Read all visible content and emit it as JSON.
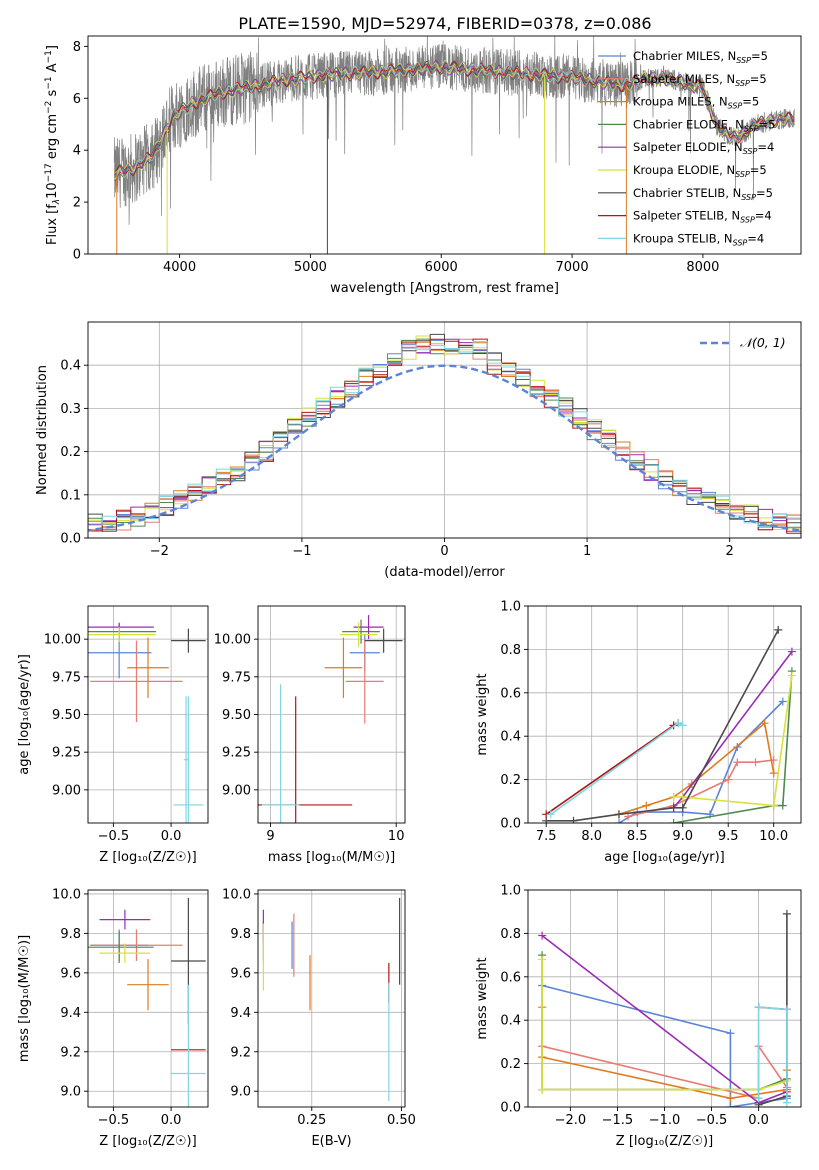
{
  "title": "PLATE=1590, MJD=52974, FIBERID=0378, z=0.086",
  "colors": {
    "chabrier_miles": "#5b84d6",
    "salpeter_miles": "#e97b73",
    "kroupa_miles": "#e07a1f",
    "chabrier_elodie": "#4f8a4f",
    "salpeter_elodie": "#9a2bb5",
    "kroupa_elodie": "#d7e23a",
    "chabrier_stelib": "#4a4a4a",
    "salpeter_stelib": "#b21414",
    "kroupa_stelib": "#7fd6e2",
    "data_gray": "#808080",
    "normal_dashed": "#5b84d6"
  },
  "chart_data": [
    {
      "id": "spectrum",
      "type": "line",
      "title": "PLATE=1590, MJD=52974, FIBERID=0378, z=0.086",
      "xlabel": "wavelength [Angstrom, rest frame]",
      "ylabel_parts": [
        "Flux [f",
        "λ",
        "10",
        "−17",
        " erg cm",
        "−2",
        " s",
        "−1",
        " A",
        "−1",
        "]"
      ],
      "xlim": [
        3300,
        8750
      ],
      "ylim": [
        0,
        8.4
      ],
      "xticks": [
        4000,
        5000,
        6000,
        7000,
        8000
      ],
      "yticks": [
        0,
        2,
        4,
        6,
        8
      ],
      "continuum": {
        "x": [
          3500,
          3650,
          3800,
          3950,
          4100,
          4300,
          4500,
          4800,
          5100,
          5500,
          6000,
          6500,
          7000,
          7400,
          7600,
          7800,
          8000,
          8100,
          8200,
          8300,
          8400,
          8600,
          8700
        ],
        "y": [
          3.1,
          3.3,
          3.8,
          5.3,
          5.8,
          6.2,
          6.4,
          6.7,
          6.9,
          7.0,
          7.2,
          7.0,
          6.8,
          6.5,
          6.8,
          6.7,
          6.4,
          5.0,
          4.5,
          4.6,
          5.0,
          5.2,
          5.2
        ]
      },
      "legend": [
        {
          "imf": "Chabrier",
          "lib": "MILES",
          "nssp": 5
        },
        {
          "imf": "Salpeter",
          "lib": "MILES",
          "nssp": 5
        },
        {
          "imf": "Kroupa",
          "lib": "MILES",
          "nssp": 5
        },
        {
          "imf": "Chabrier",
          "lib": "ELODIE",
          "nssp": 5
        },
        {
          "imf": "Salpeter",
          "lib": "ELODIE",
          "nssp": 4
        },
        {
          "imf": "Kroupa",
          "lib": "ELODIE",
          "nssp": 5
        },
        {
          "imf": "Chabrier",
          "lib": "STELIB",
          "nssp": 5
        },
        {
          "imf": "Salpeter",
          "lib": "STELIB",
          "nssp": 4
        },
        {
          "imf": "Kroupa",
          "lib": "STELIB",
          "nssp": 4
        }
      ],
      "legend_label_template": "N_SSP"
    },
    {
      "id": "residuals",
      "type": "histogram",
      "xlabel": "(data-model)/error",
      "ylabel": "Normed distribution",
      "xlim": [
        -2.5,
        2.5
      ],
      "ylim": [
        0,
        0.5
      ],
      "xticks": [
        -2,
        -1,
        0,
        1,
        2
      ],
      "yticks": [
        0.0,
        0.1,
        0.2,
        0.3,
        0.4
      ],
      "legend": "𝒩(0, 1)",
      "bin_width": 0.1
    },
    {
      "id": "age_vs_Z",
      "type": "errorbar",
      "xlabel": "Z [log₁₀(Z/Z☉)]",
      "ylabel": "age  [log₁₀(age/yr)]",
      "xlim": [
        -0.72,
        0.32
      ],
      "ylim": [
        8.78,
        10.22
      ],
      "xticks": [
        -0.5,
        0.0
      ],
      "yticks": [
        9.0,
        9.25,
        9.5,
        9.75,
        10.0
      ],
      "points": [
        {
          "x": -0.45,
          "xerr": 0.28,
          "y": 9.91,
          "yerr": 0.17,
          "c": "chabrier_miles"
        },
        {
          "x": -0.3,
          "xerr": 0.4,
          "y": 9.72,
          "yerr": 0.27,
          "c": "salpeter_miles"
        },
        {
          "x": -0.2,
          "xerr": 0.18,
          "y": 9.81,
          "yerr": 0.2,
          "c": "kroupa_miles"
        },
        {
          "x": -0.45,
          "xerr": 0.32,
          "y": 10.05,
          "yerr": 0.05,
          "c": "chabrier_elodie"
        },
        {
          "x": -0.45,
          "xerr": 0.3,
          "y": 10.08,
          "yerr": 0.03,
          "c": "salpeter_elodie"
        },
        {
          "x": -0.45,
          "xerr": 0.32,
          "y": 10.03,
          "yerr": 0.05,
          "c": "kroupa_elodie"
        },
        {
          "x": 0.15,
          "xerr": 0.15,
          "y": 9.99,
          "yerr": 0.08,
          "c": "chabrier_stelib"
        },
        {
          "x": 0.15,
          "xerr": 0.13,
          "y": 8.9,
          "yerr": 0.72,
          "c": "kroupa_stelib"
        },
        {
          "x": 0.13,
          "xerr": 0.02,
          "y": 9.2,
          "yerr": 0.42,
          "c": "kroupa_stelib"
        }
      ]
    },
    {
      "id": "age_vs_mass",
      "type": "errorbar",
      "xlabel": "mass [log₁₀(M/M☉)]",
      "ylabel": "",
      "xlim": [
        8.9,
        10.07
      ],
      "ylim": [
        8.78,
        10.22
      ],
      "xticks": [
        9,
        10
      ],
      "yticks": [
        9.0,
        9.25,
        9.5,
        9.75,
        10.0
      ],
      "points": [
        {
          "x": 9.75,
          "xerr": 0.12,
          "y": 9.91,
          "yerr": 0.12,
          "c": "chabrier_miles"
        },
        {
          "x": 9.75,
          "xerr": 0.15,
          "y": 9.72,
          "yerr": 0.28,
          "c": "salpeter_miles"
        },
        {
          "x": 9.58,
          "xerr": 0.15,
          "y": 9.81,
          "yerr": 0.2,
          "c": "kroupa_miles"
        },
        {
          "x": 9.72,
          "xerr": 0.15,
          "y": 10.05,
          "yerr": 0.08,
          "c": "chabrier_elodie"
        },
        {
          "x": 9.78,
          "xerr": 0.12,
          "y": 10.08,
          "yerr": 0.08,
          "c": "salpeter_elodie"
        },
        {
          "x": 9.7,
          "xerr": 0.15,
          "y": 10.03,
          "yerr": 0.08,
          "c": "kroupa_elodie"
        },
        {
          "x": 9.9,
          "xerr": 0.15,
          "y": 9.99,
          "yerr": 0.08,
          "c": "chabrier_stelib"
        },
        {
          "x": 9.2,
          "xerr": 0.45,
          "y": 8.9,
          "yerr": 0.72,
          "c": "salpeter_stelib"
        },
        {
          "x": 9.08,
          "xerr": 0.15,
          "y": 8.9,
          "yerr": 0.8,
          "c": "kroupa_stelib"
        }
      ]
    },
    {
      "id": "mass_weight_vs_age",
      "type": "line",
      "xlabel": "age  [log₁₀(age/yr)]",
      "ylabel": "mass weight",
      "xlim": [
        7.3,
        10.3
      ],
      "ylim": [
        0,
        1
      ],
      "xticks": [
        7.5,
        8.0,
        8.5,
        9.0,
        9.5,
        10.0
      ],
      "yticks": [
        0.0,
        0.2,
        0.4,
        0.6,
        0.8,
        1.0
      ],
      "series": [
        {
          "c": "chabrier_miles",
          "x": [
            8.3,
            8.5,
            9.0,
            9.3,
            9.6,
            10.1
          ],
          "y": [
            0.0,
            0.05,
            0.05,
            0.04,
            0.35,
            0.56
          ]
        },
        {
          "c": "salpeter_miles",
          "x": [
            8.4,
            8.9,
            9.5,
            9.6,
            9.8,
            10.0
          ],
          "y": [
            0.03,
            0.08,
            0.2,
            0.28,
            0.28,
            0.29
          ]
        },
        {
          "c": "kroupa_miles",
          "x": [
            8.3,
            8.6,
            8.9,
            9.1,
            9.9,
            10.0
          ],
          "y": [
            0.04,
            0.08,
            0.12,
            0.18,
            0.46,
            0.23
          ]
        },
        {
          "c": "chabrier_elodie",
          "x": [
            8.9,
            10.0,
            10.1,
            10.2
          ],
          "y": [
            0.0,
            0.08,
            0.08,
            0.7
          ]
        },
        {
          "c": "salpeter_elodie",
          "x": [
            8.9,
            9.0,
            10.2
          ],
          "y": [
            0.07,
            0.12,
            0.79
          ]
        },
        {
          "c": "kroupa_elodie",
          "x": [
            8.9,
            9.0,
            10.0,
            10.2
          ],
          "y": [
            0.12,
            0.12,
            0.08,
            0.68
          ]
        },
        {
          "c": "chabrier_stelib",
          "x": [
            7.5,
            7.8,
            8.3,
            8.9,
            9.0,
            10.05
          ],
          "y": [
            0.01,
            0.01,
            0.04,
            0.07,
            0.07,
            0.89
          ]
        },
        {
          "c": "salpeter_stelib",
          "x": [
            7.5,
            8.9,
            8.95
          ],
          "y": [
            0.04,
            0.45,
            0.46
          ]
        },
        {
          "c": "kroupa_stelib",
          "x": [
            7.55,
            8.95,
            9.0
          ],
          "y": [
            0.04,
            0.46,
            0.45
          ]
        }
      ]
    },
    {
      "id": "mass_vs_Z",
      "type": "errorbar",
      "xlabel": "Z [log₁₀(Z/Z☉)]",
      "ylabel": "mass [log₁₀(M/M☉)]",
      "xlim": [
        -0.72,
        0.32
      ],
      "ylim": [
        8.92,
        10.02
      ],
      "xticks": [
        -0.5,
        0.0
      ],
      "yticks": [
        9.0,
        9.2,
        9.4,
        9.6,
        9.8,
        10.0
      ],
      "points": [
        {
          "x": -0.45,
          "xerr": 0.25,
          "y": 9.74,
          "yerr": 0.08,
          "c": "chabrier_miles"
        },
        {
          "x": -0.3,
          "xerr": 0.4,
          "y": 9.74,
          "yerr": 0.08,
          "c": "salpeter_miles"
        },
        {
          "x": -0.2,
          "xerr": 0.18,
          "y": 9.54,
          "yerr": 0.13,
          "c": "kroupa_miles"
        },
        {
          "x": -0.45,
          "xerr": 0.3,
          "y": 9.73,
          "yerr": 0.08,
          "c": "chabrier_elodie"
        },
        {
          "x": -0.4,
          "xerr": 0.22,
          "y": 9.87,
          "yerr": 0.05,
          "c": "salpeter_elodie"
        },
        {
          "x": -0.4,
          "xerr": 0.22,
          "y": 9.7,
          "yerr": 0.05,
          "c": "kroupa_elodie"
        },
        {
          "x": 0.15,
          "xerr": 0.15,
          "y": 9.66,
          "yerr": 0.32,
          "c": "chabrier_stelib"
        },
        {
          "x": 0.15,
          "xerr": 0.15,
          "y": 9.21,
          "yerr": 0.0,
          "c": "salpeter_stelib"
        },
        {
          "x": 0.15,
          "xerr": 0.15,
          "y": 9.09,
          "yerr": 0.45,
          "c": "kroupa_stelib"
        }
      ]
    },
    {
      "id": "mass_vs_ebv",
      "type": "errorbar",
      "xlabel": "E(B-V)",
      "ylabel": "",
      "xlim": [
        0.1,
        0.51
      ],
      "ylim": [
        8.92,
        10.02
      ],
      "xticks": [
        0.25,
        0.5
      ],
      "yticks": [
        9.0,
        9.2,
        9.4,
        9.6,
        9.8,
        10.0
      ],
      "points": [
        {
          "x": 0.195,
          "xerr": 0.0,
          "y": 9.74,
          "yerr": 0.12,
          "c": "chabrier_miles"
        },
        {
          "x": 0.2,
          "xerr": 0.0,
          "y": 9.74,
          "yerr": 0.16,
          "c": "salpeter_miles"
        },
        {
          "x": 0.245,
          "xerr": 0.0,
          "y": 9.55,
          "yerr": 0.14,
          "c": "kroupa_miles"
        },
        {
          "x": 0.115,
          "xerr": 0.0,
          "y": 9.76,
          "yerr": 0.1,
          "c": "chabrier_elodie"
        },
        {
          "x": 0.115,
          "xerr": 0.0,
          "y": 9.84,
          "yerr": 0.08,
          "c": "salpeter_elodie"
        },
        {
          "x": 0.115,
          "xerr": 0.0,
          "y": 9.68,
          "yerr": 0.17,
          "c": "kroupa_elodie"
        },
        {
          "x": 0.495,
          "xerr": 0.0,
          "y": 9.76,
          "yerr": 0.22,
          "c": "chabrier_stelib"
        },
        {
          "x": 0.465,
          "xerr": 0.0,
          "y": 9.55,
          "yerr": 0.1,
          "c": "salpeter_stelib"
        },
        {
          "x": 0.465,
          "xerr": 0.0,
          "y": 9.25,
          "yerr": 0.3,
          "c": "kroupa_stelib"
        }
      ]
    },
    {
      "id": "mass_weight_vs_Z",
      "type": "line",
      "xlabel": "Z [log₁₀(Z/Z☉)]",
      "ylabel": "mass weight",
      "xlim": [
        -2.45,
        0.45
      ],
      "ylim": [
        0,
        1
      ],
      "xticks": [
        -2.0,
        -1.5,
        -1.0,
        -0.5,
        0.0
      ],
      "yticks": [
        0.0,
        0.2,
        0.4,
        0.6,
        0.8,
        1.0
      ],
      "series": [
        {
          "c": "chabrier_miles",
          "x": [
            -2.3,
            -0.3,
            -0.3,
            0.3
          ],
          "y": [
            0.56,
            0.34,
            0.0,
            0.04
          ]
        },
        {
          "c": "salpeter_miles",
          "x": [
            -2.3,
            0.0,
            0.0,
            0.3
          ],
          "y": [
            0.28,
            0.04,
            0.28,
            0.09
          ]
        },
        {
          "c": "kroupa_miles",
          "x": [
            -2.3,
            -2.3,
            -0.3,
            0.3,
            0.3
          ],
          "y": [
            0.46,
            0.23,
            0.04,
            0.08,
            0.17
          ]
        },
        {
          "c": "chabrier_elodie",
          "x": [
            -2.3,
            -2.3,
            0.0,
            0.3
          ],
          "y": [
            0.7,
            0.08,
            0.08,
            0.13
          ]
        },
        {
          "c": "salpeter_elodie",
          "x": [
            -2.3,
            0.0,
            0.3
          ],
          "y": [
            0.79,
            0.02,
            0.07
          ]
        },
        {
          "c": "kroupa_elodie",
          "x": [
            -2.3,
            -2.3,
            0.0,
            0.3,
            0.3
          ],
          "y": [
            0.68,
            0.08,
            0.08,
            0.12,
            0.02
          ]
        },
        {
          "c": "chabrier_stelib",
          "x": [
            0.0,
            0.3,
            0.3
          ],
          "y": [
            0.01,
            0.05,
            0.89
          ]
        },
        {
          "c": "salpeter_stelib",
          "x": [
            0.0,
            0.3
          ],
          "y": [
            0.46,
            0.45
          ]
        },
        {
          "c": "kroupa_stelib",
          "x": [
            0.0,
            0.0,
            0.3,
            0.3
          ],
          "y": [
            0.04,
            0.46,
            0.45,
            0.02
          ]
        }
      ]
    }
  ]
}
